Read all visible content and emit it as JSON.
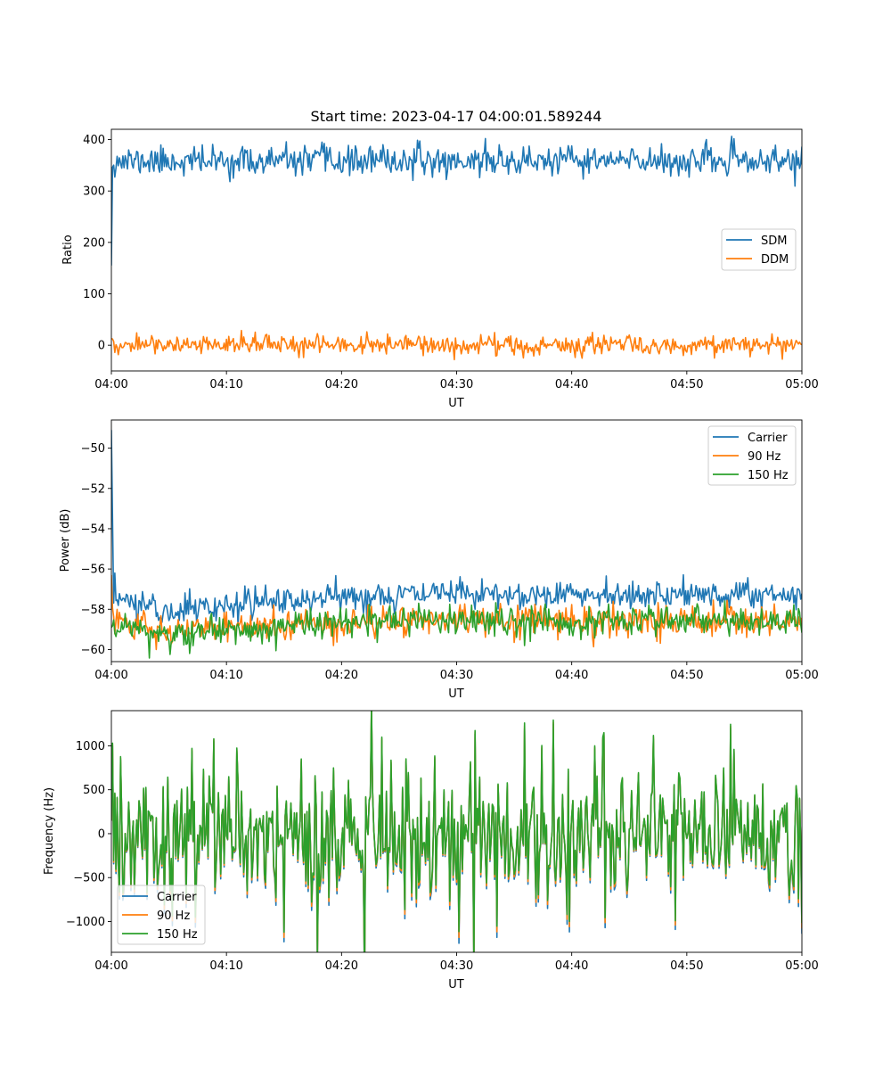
{
  "chart_data": [
    {
      "type": "line",
      "title": "Start time: 2023-04-17 04:00:01.589244",
      "xlabel": "UT",
      "ylabel": "Ratio",
      "x_range": [
        "04:00",
        "05:00"
      ],
      "xticks": [
        "04:00",
        "04:10",
        "04:20",
        "04:30",
        "04:40",
        "04:50",
        "05:00"
      ],
      "ylim": [
        -50,
        420
      ],
      "yticks": [
        0,
        100,
        200,
        300,
        400
      ],
      "legend": "center-right",
      "series": [
        {
          "name": "SDM",
          "color": "#1f77b4",
          "mean": 358,
          "noise": 14,
          "start_value": 155,
          "seed": 11,
          "spikes": [
            [
              32.5,
              402
            ],
            [
              18.3,
              395
            ],
            [
              47.8,
              392
            ],
            [
              13.2,
              335
            ]
          ]
        },
        {
          "name": "DDM",
          "color": "#ff7f0e",
          "mean": 0,
          "noise": 9,
          "seed": 23,
          "spikes": [
            [
              2.2,
              24
            ],
            [
              29.8,
              -28
            ],
            [
              41.8,
              25
            ],
            [
              33.5,
              -20
            ]
          ]
        }
      ]
    },
    {
      "type": "line",
      "title": "",
      "xlabel": "UT",
      "ylabel": "Power (dB)",
      "x_range": [
        "04:00",
        "05:00"
      ],
      "xticks": [
        "04:00",
        "04:10",
        "04:20",
        "04:30",
        "04:40",
        "04:50",
        "05:00"
      ],
      "ylim": [
        -60.6,
        -48.6
      ],
      "yticks": [
        -60,
        -58,
        -56,
        -54,
        -52,
        -50
      ],
      "legend": "top-right",
      "series": [
        {
          "name": "Carrier",
          "color": "#1f77b4",
          "mean": -57.6,
          "noise": 0.35,
          "start_value": -49.1,
          "seed": 31,
          "trend": [
            [
              0,
              -57.4
            ],
            [
              5,
              -58.1
            ],
            [
              10,
              -57.8
            ],
            [
              20,
              -57.4
            ],
            [
              30,
              -57.2
            ],
            [
              60,
              -57.3
            ]
          ],
          "spikes": [
            [
              0.25,
              -56.2
            ]
          ]
        },
        {
          "name": "90 Hz",
          "color": "#ff7f0e",
          "mean": -58.7,
          "noise": 0.38,
          "start_value": -56.3,
          "seed": 47,
          "trend": [
            [
              0,
              -58.5
            ],
            [
              5,
              -59.1
            ],
            [
              10,
              -58.9
            ],
            [
              20,
              -58.6
            ],
            [
              30,
              -58.5
            ],
            [
              60,
              -58.6
            ]
          ],
          "spikes": [
            [
              3.9,
              -60.0
            ],
            [
              19.3,
              -59.8
            ]
          ]
        },
        {
          "name": "150 Hz",
          "color": "#2ca02c",
          "mean": -58.8,
          "noise": 0.38,
          "seed": 59,
          "trend": [
            [
              0,
              -58.8
            ],
            [
              5,
              -59.3
            ],
            [
              10,
              -59.0
            ],
            [
              20,
              -58.7
            ],
            [
              30,
              -58.6
            ],
            [
              60,
              -58.6
            ]
          ],
          "spikes": [
            [
              35.9,
              -59.8
            ],
            [
              6.6,
              -59.7
            ]
          ]
        }
      ]
    },
    {
      "type": "line",
      "title": "",
      "xlabel": "UT",
      "ylabel": "Frequency (Hz)",
      "x_range": [
        "04:00",
        "05:00"
      ],
      "xticks": [
        "04:00",
        "04:10",
        "04:20",
        "04:30",
        "04:40",
        "04:50",
        "05:00"
      ],
      "ylim": [
        -1350,
        1400
      ],
      "yticks": [
        -1000,
        -500,
        0,
        500,
        1000
      ],
      "legend": "bottom-left",
      "series": [
        {
          "name": "Carrier",
          "color": "#1f77b4",
          "mean": 0,
          "noise": 380,
          "seed": 71,
          "shared": true,
          "offset_scale": 1.12,
          "spikes": [
            [
              35.9,
              1200
            ],
            [
              15.0,
              -1230
            ],
            [
              8.9,
              1050
            ],
            [
              49.0,
              -1090
            ],
            [
              0.1,
              1000
            ]
          ]
        },
        {
          "name": "90 Hz",
          "color": "#ff7f0e",
          "mean": 0,
          "noise": 380,
          "seed": 71,
          "shared": true,
          "offset_scale": 1.06,
          "spikes": [
            [
              35.9,
              1230
            ],
            [
              15.0,
              -1180
            ],
            [
              8.9,
              1070
            ],
            [
              49.0,
              -1040
            ],
            [
              0.1,
              1020
            ]
          ]
        },
        {
          "name": "150 Hz",
          "color": "#2ca02c",
          "mean": 0,
          "noise": 380,
          "seed": 71,
          "shared": true,
          "offset_scale": 1.0,
          "spikes": [
            [
              35.9,
              1260
            ],
            [
              15.0,
              -1120
            ],
            [
              8.9,
              1080
            ],
            [
              49.0,
              -990
            ],
            [
              0.1,
              1030
            ]
          ]
        }
      ]
    }
  ]
}
